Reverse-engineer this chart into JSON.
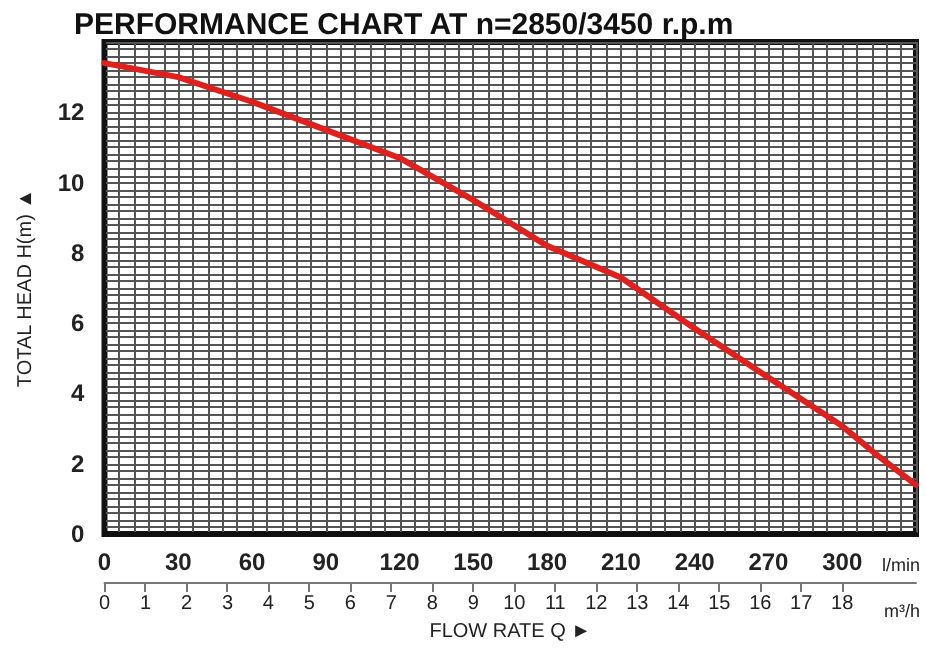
{
  "chart_data": {
    "type": "line",
    "title": "PERFORMANCE CHART AT n=2850/3450 r.p.m",
    "xlabel": "FLOW RATE Q ►",
    "ylabel": "TOTAL HEAD H(m) ▲",
    "x2label": "m³/h",
    "annotations": [
      "l/min"
    ],
    "x": [
      0,
      30,
      60,
      90,
      120,
      150,
      180,
      210,
      240,
      270,
      300,
      315,
      330
    ],
    "series": [
      {
        "color": "#e0201c",
        "values": [
          13.4,
          13.0,
          12.3,
          11.5,
          10.7,
          9.5,
          8.2,
          7.3,
          5.85,
          4.45,
          3.07,
          2.2,
          1.4
        ]
      }
    ],
    "xlim": [
      0,
      330
    ],
    "xticks": [
      0,
      30,
      60,
      90,
      120,
      150,
      180,
      210,
      240,
      270,
      300
    ],
    "x2lim": [
      0,
      19.8
    ],
    "x2ticks": [
      0,
      1,
      2,
      3,
      4,
      5,
      6,
      7,
      8,
      9,
      10,
      11,
      12,
      13,
      14,
      15,
      16,
      17,
      18
    ],
    "ylim": [
      0,
      14
    ],
    "yticks": [
      0,
      2,
      4,
      6,
      8,
      10,
      12
    ],
    "grid": true,
    "marker": "none",
    "line_style": "solid"
  }
}
